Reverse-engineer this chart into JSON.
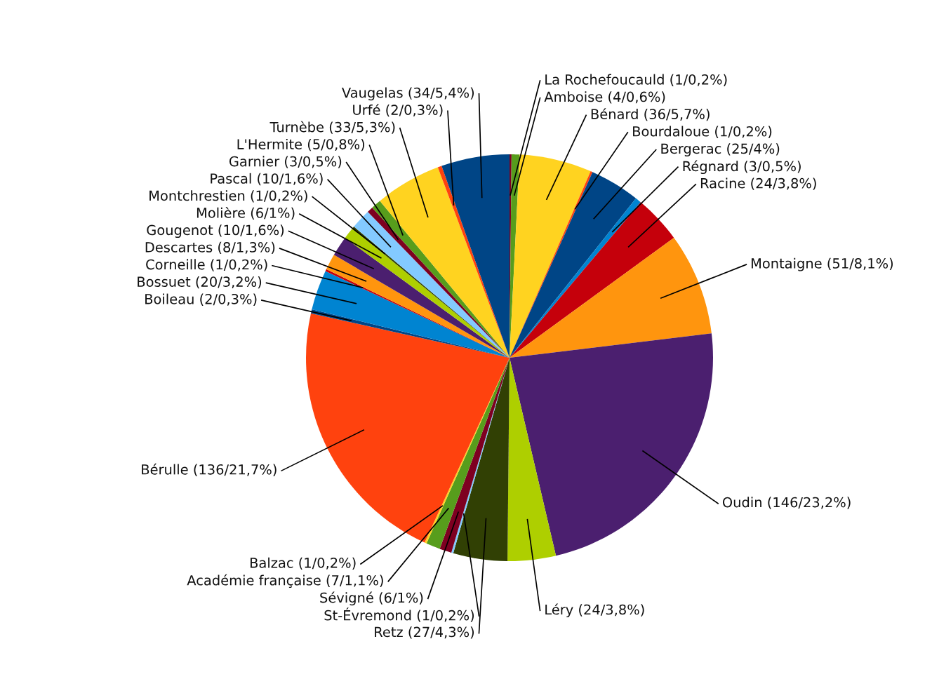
{
  "chart_data": {
    "type": "pie",
    "categories": [
      "La Rochefoucauld (1/0,2%)",
      "Amboise (4/0,6%)",
      "Bénard (36/5,7%)",
      "Bourdaloue (1/0,2%)",
      "Bergerac (25/4%)",
      "Régnard (3/0,5%)",
      "Racine (24/3,8%)",
      "Montaigne (51/8,1%)",
      "Oudin (146/23,2%)",
      "Léry (24/3,8%)",
      "Retz (27/4,3%)",
      "St-Évremond (1/0,2%)",
      "Sévigné (6/1%)",
      "Académie française (7/1,1%)",
      "Balzac (1/0,2%)",
      "Bérulle (136/21,7%)",
      "Boileau (2/0,3%)",
      "Bossuet (20/3,2%)",
      "Corneille (1/0,2%)",
      "Descartes (8/1,3%)",
      "Gougenot (10/1,6%)",
      "Molière (6/1%)",
      "Montchrestien (1/0,2%)",
      "Pascal (10/1,6%)",
      "Garnier (3/0,5%)",
      "L'Hermite (5/0,8%)",
      "Turnèbe (33/5,3%)",
      "Urfé (2/0,3%)",
      "Vaugelas (34/5,4%)"
    ],
    "values": [
      1,
      4,
      36,
      1,
      25,
      3,
      24,
      51,
      146,
      24,
      27,
      1,
      6,
      7,
      1,
      136,
      2,
      20,
      1,
      8,
      10,
      6,
      1,
      10,
      3,
      5,
      33,
      2,
      34
    ],
    "colors": [
      "#7e0021",
      "#579d1c",
      "#ffd320",
      "#ff420e",
      "#004586",
      "#0084d1",
      "#c5000b",
      "#ff950e",
      "#4b1f6f",
      "#aecf00",
      "#314004",
      "#83caff",
      "#7e0021",
      "#579d1c",
      "#ffd320",
      "#ff420e",
      "#004586",
      "#0084d1",
      "#c5000b",
      "#ff950e",
      "#4b1f6f",
      "#aecf00",
      "#314004",
      "#83caff",
      "#7e0021",
      "#579d1c",
      "#ffd320",
      "#ff420e",
      "#004586"
    ]
  }
}
